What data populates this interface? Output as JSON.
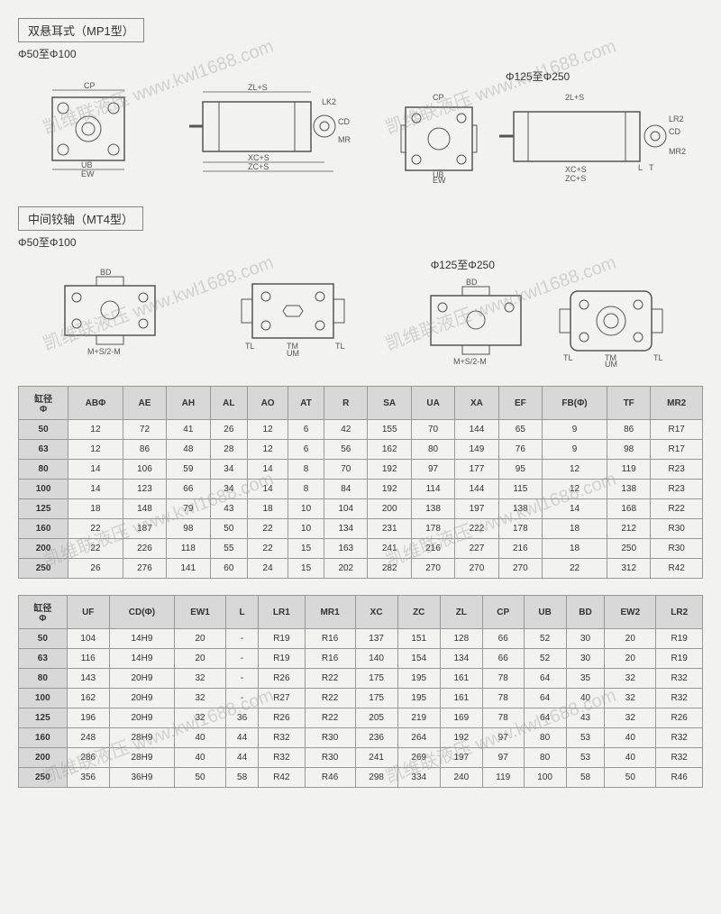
{
  "watermark_text": "凯维联液压 www.kwl1688.com",
  "mp1": {
    "title": "双悬耳式（MP1型）",
    "range_left": "Φ50至Φ100",
    "range_right": "Φ125至Φ250",
    "dims": {
      "CP": "CP",
      "EW": "EW",
      "UB": "UB",
      "ZLS": "ZL+S",
      "XCS": "XC+S",
      "ZCS": "ZC+S",
      "LK2": "LK2",
      "CD": "CD",
      "MR": "MR",
      "TwoLS": "2L+S",
      "LR2": "LR2",
      "MR2": "MR2",
      "L": "L",
      "T": "T"
    }
  },
  "mt4": {
    "title": "中间铰轴（MT4型）",
    "range_left": "Φ50至Φ100",
    "range_right": "Φ125至Φ250",
    "dims": {
      "BD": "BD",
      "MS2M": "M+S/2-M",
      "TM": "TM",
      "UM": "UM",
      "TL": "TL"
    }
  },
  "table1": {
    "headers": [
      "缸径\nΦ",
      "ABΦ",
      "AE",
      "AH",
      "AL",
      "AO",
      "AT",
      "R",
      "SA",
      "UA",
      "XA",
      "EF",
      "FB(Φ)",
      "TF",
      "MR2"
    ],
    "rows": [
      [
        "50",
        "12",
        "72",
        "41",
        "26",
        "12",
        "6",
        "42",
        "155",
        "70",
        "144",
        "65",
        "9",
        "86",
        "R17"
      ],
      [
        "63",
        "12",
        "86",
        "48",
        "28",
        "12",
        "6",
        "56",
        "162",
        "80",
        "149",
        "76",
        "9",
        "98",
        "R17"
      ],
      [
        "80",
        "14",
        "106",
        "59",
        "34",
        "14",
        "8",
        "70",
        "192",
        "97",
        "177",
        "95",
        "12",
        "119",
        "R23"
      ],
      [
        "100",
        "14",
        "123",
        "66",
        "34",
        "14",
        "8",
        "84",
        "192",
        "114",
        "144",
        "115",
        "12",
        "138",
        "R23"
      ],
      [
        "125",
        "18",
        "148",
        "79",
        "43",
        "18",
        "10",
        "104",
        "200",
        "138",
        "197",
        "138",
        "14",
        "168",
        "R22"
      ],
      [
        "160",
        "22",
        "187",
        "98",
        "50",
        "22",
        "10",
        "134",
        "231",
        "178",
        "222",
        "178",
        "18",
        "212",
        "R30"
      ],
      [
        "200",
        "22",
        "226",
        "118",
        "55",
        "22",
        "15",
        "163",
        "241",
        "216",
        "227",
        "216",
        "18",
        "250",
        "R30"
      ],
      [
        "250",
        "26",
        "276",
        "141",
        "60",
        "24",
        "15",
        "202",
        "282",
        "270",
        "270",
        "270",
        "22",
        "312",
        "R42"
      ]
    ]
  },
  "table2": {
    "headers": [
      "缸径\nΦ",
      "UF",
      "CD(Φ)",
      "EW1",
      "L",
      "LR1",
      "MR1",
      "XC",
      "ZC",
      "ZL",
      "CP",
      "UB",
      "BD",
      "EW2",
      "LR2"
    ],
    "rows": [
      [
        "50",
        "104",
        "14H9",
        "20",
        "-",
        "R19",
        "R16",
        "137",
        "151",
        "128",
        "66",
        "52",
        "30",
        "20",
        "R19"
      ],
      [
        "63",
        "116",
        "14H9",
        "20",
        "-",
        "R19",
        "R16",
        "140",
        "154",
        "134",
        "66",
        "52",
        "30",
        "20",
        "R19"
      ],
      [
        "80",
        "143",
        "20H9",
        "32",
        "-",
        "R26",
        "R22",
        "175",
        "195",
        "161",
        "78",
        "64",
        "35",
        "32",
        "R32"
      ],
      [
        "100",
        "162",
        "20H9",
        "32",
        "-",
        "R27",
        "R22",
        "175",
        "195",
        "161",
        "78",
        "64",
        "40",
        "32",
        "R32"
      ],
      [
        "125",
        "196",
        "20H9",
        "32",
        "36",
        "R26",
        "R22",
        "205",
        "219",
        "169",
        "78",
        "64",
        "43",
        "32",
        "R26"
      ],
      [
        "160",
        "248",
        "28H9",
        "40",
        "44",
        "R32",
        "R30",
        "236",
        "264",
        "192",
        "97",
        "80",
        "53",
        "40",
        "R32"
      ],
      [
        "200",
        "286",
        "28H9",
        "40",
        "44",
        "R32",
        "R30",
        "241",
        "269",
        "197",
        "97",
        "80",
        "53",
        "40",
        "R32"
      ],
      [
        "250",
        "356",
        "36H9",
        "50",
        "58",
        "R42",
        "R46",
        "298",
        "334",
        "240",
        "119",
        "100",
        "58",
        "50",
        "R46"
      ]
    ]
  }
}
